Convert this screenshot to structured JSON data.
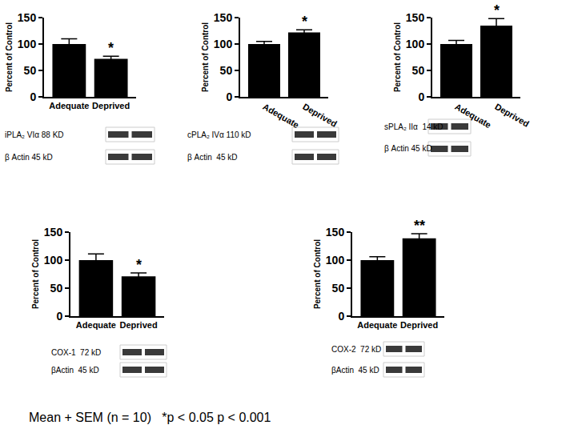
{
  "chart_data": [
    {
      "type": "bar",
      "ylabel": "Percent of Control",
      "categories": [
        "Adequate",
        "Deprived"
      ],
      "values": [
        100,
        72
      ],
      "errors": [
        10,
        5
      ],
      "significance": [
        null,
        "*"
      ],
      "color": "#000000",
      "ylim": [
        0,
        150
      ],
      "yticks": [
        0,
        50,
        100,
        150
      ],
      "grid": false,
      "blot_labels": [
        "iPLA₂ VIα 88 KD",
        "β Actin 45 kD"
      ]
    },
    {
      "type": "bar",
      "ylabel": "Percent of Control",
      "categories": [
        "Adequate",
        "Deprived"
      ],
      "values": [
        100,
        122
      ],
      "errors": [
        5,
        5
      ],
      "significance": [
        null,
        "*"
      ],
      "color": "#000000",
      "ylim": [
        0,
        150
      ],
      "yticks": [
        0,
        50,
        100,
        150
      ],
      "grid": false,
      "blot_labels": [
        "cPLA₂ IVα 110 kD",
        "β Actin  45 kD"
      ]
    },
    {
      "type": "bar",
      "ylabel": "Percent of Control",
      "categories": [
        "Adequate",
        "Deprived"
      ],
      "values": [
        100,
        135
      ],
      "errors": [
        7,
        13
      ],
      "significance": [
        null,
        "*"
      ],
      "color": "#000000",
      "ylim": [
        0,
        150
      ],
      "yticks": [
        0,
        50,
        100,
        150
      ],
      "grid": false,
      "blot_labels": [
        "sPLA₂ IIα  14 kD",
        "β Actin 45 kD"
      ]
    },
    {
      "type": "bar",
      "ylabel": "Percent of Control",
      "categories": [
        "Adequate",
        "Deprived"
      ],
      "values": [
        100,
        71
      ],
      "errors": [
        11,
        6
      ],
      "significance": [
        null,
        "*"
      ],
      "color": "#000000",
      "ylim": [
        0,
        150
      ],
      "yticks": [
        0,
        50,
        100,
        150
      ],
      "grid": false,
      "blot_labels": [
        "COX-1  72 kD",
        "βActin  45 kD"
      ]
    },
    {
      "type": "bar",
      "ylabel": "Percent of Control",
      "categories": [
        "Adequate",
        "Deprived"
      ],
      "values": [
        100,
        139
      ],
      "errors": [
        6,
        8
      ],
      "significance": [
        null,
        "**"
      ],
      "color": "#000000",
      "ylim": [
        0,
        150
      ],
      "yticks": [
        0,
        50,
        100,
        150
      ],
      "grid": false,
      "blot_labels": [
        "COX-2  72 kD",
        "βActin  45 kD"
      ]
    }
  ],
  "footnote": "Mean + SEM (n = 10)   *p < 0.05 p < 0.001"
}
